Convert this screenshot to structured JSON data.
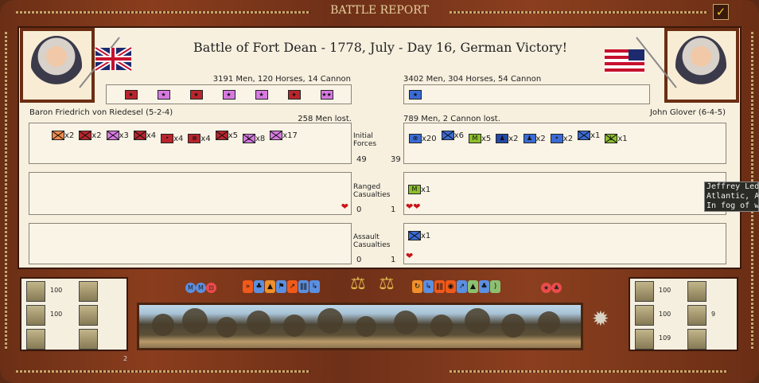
{
  "window": {
    "title": "BATTLE REPORT",
    "close_icon": "checkmark-icon"
  },
  "battle": {
    "title": "Battle of Fort Dean - 1778, July - Day 16, German Victory!"
  },
  "left": {
    "commander": "Baron Friedrich von Riedesel (5-2-4)",
    "flag": "union-jack",
    "strength": "3191 Men, 120 Horses, 14 Cannon",
    "leaders": [
      {
        "color": "#b8252c",
        "sym": "★"
      },
      {
        "color": "#d77ae0",
        "sym": "★"
      },
      {
        "color": "#b8252c",
        "sym": "★"
      },
      {
        "color": "#d77ae0",
        "sym": "★"
      },
      {
        "color": "#d77ae0",
        "sym": "★"
      },
      {
        "color": "#b8252c",
        "sym": "★"
      },
      {
        "color": "#d77ae0",
        "sym": "★★"
      }
    ],
    "lost": "258 Men lost.",
    "initial": [
      {
        "color": "#f08a4b",
        "sym": "x",
        "count": "x2"
      },
      {
        "color": "#b8252c",
        "sym": "x",
        "count": "x2"
      },
      {
        "color": "#d77ae0",
        "sym": "x",
        "count": "x3"
      },
      {
        "color": "#b8252c",
        "sym": "x",
        "count": "x4"
      },
      {
        "color": "#b8252c",
        "sym": "•",
        "count": "x4"
      },
      {
        "color": "#b8252c",
        "sym": "⊗",
        "count": "x4"
      },
      {
        "color": "#b8252c",
        "sym": "x",
        "count": "x5"
      },
      {
        "color": "#d77ae0",
        "sym": "xL",
        "count": "x8"
      },
      {
        "color": "#d77ae0",
        "sym": "x",
        "count": "x17"
      }
    ],
    "ranged": [],
    "assault": [],
    "initial_total": "49",
    "ranged_total": "0",
    "assault_total": "0",
    "ranged_hearts": "❤",
    "assault_hearts": "",
    "stats": [
      "100",
      "100",
      ""
    ],
    "extra": "2"
  },
  "right": {
    "commander": "John Glover (6-4-5)",
    "flag": "betsy-ross",
    "strength": "3402 Men, 304 Horses, 54 Cannon",
    "leaders": [
      {
        "color": "#3a6bd6",
        "sym": "★"
      }
    ],
    "lost": "789 Men, 2 Cannon lost.",
    "initial": [
      {
        "color": "#3a6bd6",
        "sym": "⊗",
        "count": "x20"
      },
      {
        "color": "#3a6bd6",
        "sym": "x",
        "count": "x6"
      },
      {
        "color": "#8cc02a",
        "sym": "M",
        "count": "x5"
      },
      {
        "color": "#2349a8",
        "sym": "♟",
        "count": "x2"
      },
      {
        "color": "#3a6bd6",
        "sym": "♟",
        "count": "x2"
      },
      {
        "color": "#3a6bd6",
        "sym": "•",
        "count": "x2"
      },
      {
        "color": "#3a6bd6",
        "sym": "x",
        "count": "x1"
      },
      {
        "color": "#8cc02a",
        "sym": "xL",
        "count": "x1"
      }
    ],
    "ranged": [
      {
        "color": "#8cc02a",
        "sym": "M",
        "count": "x1"
      }
    ],
    "assault": [
      {
        "color": "#3a6bd6",
        "sym": "x",
        "count": "x1"
      }
    ],
    "initial_total": "39",
    "ranged_total": "1",
    "assault_total": "1",
    "ranged_hearts": "❤❤",
    "assault_hearts": "❤",
    "stats": [
      "100",
      "100",
      "109"
    ],
    "extra": "9"
  },
  "rows": {
    "initial": "Initial Forces",
    "ranged": "Ranged Casualties",
    "assault": "Assault Casualties"
  },
  "modifiers": {
    "left_round": [
      {
        "color": "#5b8fe0",
        "sym": "M"
      },
      {
        "color": "#5b8fe0",
        "sym": "M"
      },
      {
        "color": "#ec4b4b",
        "sym": "⊡"
      }
    ],
    "left": [
      {
        "color": "#f05a1a",
        "sym": "»"
      },
      {
        "color": "#5b8fe0",
        "sym": "♣"
      },
      {
        "color": "#f0902a",
        "sym": "▲"
      },
      {
        "color": "#5b8fe0",
        "sym": "⚑"
      },
      {
        "color": "#f05a1a",
        "sym": "↗"
      },
      {
        "color": "#5b8fe0",
        "sym": "ǁǁ"
      },
      {
        "color": "#5b8fe0",
        "sym": "↳"
      }
    ],
    "right": [
      {
        "color": "#f0902a",
        "sym": "↻"
      },
      {
        "color": "#5b8fe0",
        "sym": "↳"
      },
      {
        "color": "#f05a1a",
        "sym": "ǁǁ"
      },
      {
        "color": "#f05a1a",
        "sym": "◉"
      },
      {
        "color": "#5b8fe0",
        "sym": "↗"
      },
      {
        "color": "#8cc070",
        "sym": "▲"
      },
      {
        "color": "#5b8fe0",
        "sym": "♣"
      },
      {
        "color": "#8cc070",
        "sym": ")"
      }
    ],
    "right_round": [
      {
        "color": "#ec4b4b",
        "sym": "★"
      },
      {
        "color": "#ec4b4b",
        "sym": "♣"
      }
    ]
  },
  "weather_icon": "sun-icon",
  "tooltip": {
    "lines": [
      "Jeffrey Ledo",
      "Atlantic, Atla",
      "In fog of wa"
    ]
  }
}
